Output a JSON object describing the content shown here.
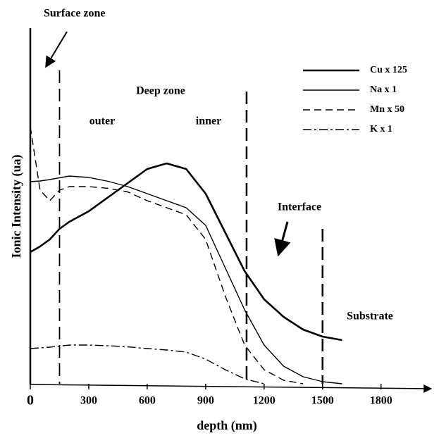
{
  "chart_data": {
    "type": "line",
    "xlabel": "depth (nm)",
    "ylabel": "Ionic Intensity (ua)",
    "x": [
      0,
      50,
      100,
      150,
      200,
      300,
      400,
      500,
      600,
      700,
      800,
      900,
      1000,
      1100,
      1200,
      1300,
      1400,
      1500,
      1600
    ],
    "series": [
      {
        "name": "Cu x 125",
        "color": "#000000",
        "style": "solid",
        "width": 2.6,
        "values": [
          37.4,
          39,
          41,
          44,
          46,
          49,
          53,
          57,
          61,
          62.6,
          61,
          54,
          43,
          32,
          24,
          19,
          15.4,
          13.4,
          12.4
        ]
      },
      {
        "name": "Na x 1",
        "color": "#000000",
        "style": "solid",
        "width": 1.4,
        "values": [
          57.4,
          57.6,
          58,
          58.5,
          59,
          58.6,
          57.5,
          56,
          54,
          52,
          50,
          45,
          33,
          21,
          11,
          5,
          2,
          0.6,
          0
        ]
      },
      {
        "name": "Mn x 50",
        "color": "#000000",
        "style": "dashed",
        "width": 1.4,
        "values": [
          73,
          55,
          52,
          55,
          56,
          56,
          55.5,
          54.5,
          52,
          50,
          48,
          41,
          25,
          11,
          4,
          1,
          0,
          null,
          null
        ]
      },
      {
        "name": "K x 1",
        "color": "#000000",
        "style": "dashdot",
        "width": 1.4,
        "values": [
          10,
          10.2,
          10.4,
          10.7,
          11,
          11,
          10.8,
          10.5,
          10,
          9.6,
          9,
          7,
          4,
          1.4,
          0,
          null,
          null,
          null,
          null
        ]
      }
    ],
    "xlim": [
      0,
      2000
    ],
    "ylim": [
      0,
      100
    ],
    "xticks": [
      0,
      300,
      600,
      900,
      1200,
      1500,
      1800
    ],
    "boundaries": [
      150,
      1110,
      1500
    ],
    "annotations": [
      "Surface zone",
      "Deep zone",
      "outer",
      "inner",
      "Interface",
      "Substrate"
    ],
    "legend": "upper right",
    "grid": false
  }
}
